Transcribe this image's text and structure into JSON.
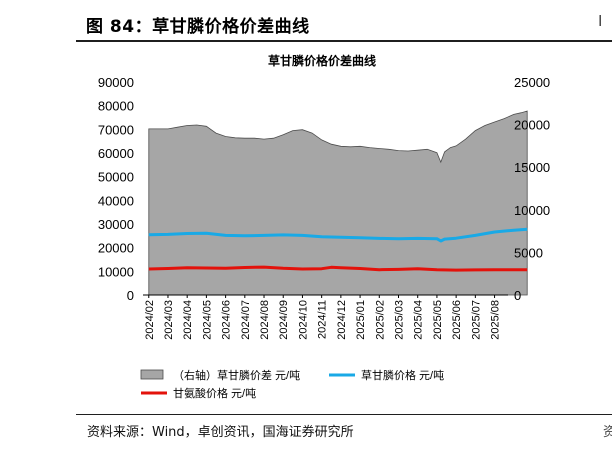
{
  "figure": {
    "label": "图 84：草甘膦价格价差曲线",
    "corner_glyph": "I",
    "source": "资料来源：Wind，卓创资讯，国海证券研究所",
    "source_corner": "资"
  },
  "chart_data": {
    "type": "area+line",
    "title": "草甘膦价格价差曲线",
    "x_labels": [
      "2024/02",
      "2024/03",
      "2024/04",
      "2024/05",
      "2024/06",
      "2024/07",
      "2024/08",
      "2024/09",
      "2024/10",
      "2024/11",
      "2024/12",
      "2025/01",
      "2025/02",
      "2025/03",
      "2025/04",
      "2025/05",
      "2025/06",
      "2025/07",
      "2025/08"
    ],
    "y_left": {
      "min": 0,
      "max": 90000,
      "ticks": [
        "0",
        "10000",
        "20000",
        "30000",
        "40000",
        "50000",
        "60000",
        "70000",
        "80000",
        "90000"
      ]
    },
    "y_right": {
      "min": 0,
      "max": 25000,
      "ticks": [
        "0",
        "5000",
        "10000",
        "15000",
        "20000",
        "25000"
      ]
    },
    "grid": false,
    "legend_position": "bottom",
    "series": [
      {
        "name": "（右轴）草甘膦价差 元/吨",
        "kind": "area",
        "axis": "right",
        "color": "#a6a6a6",
        "points": [
          [
            0,
            19500
          ],
          [
            1,
            19500
          ],
          [
            1.5,
            19700
          ],
          [
            2,
            19900
          ],
          [
            2.5,
            19950
          ],
          [
            3,
            19800
          ],
          [
            3.5,
            19000
          ],
          [
            4,
            18600
          ],
          [
            4.5,
            18450
          ],
          [
            5,
            18400
          ],
          [
            5.5,
            18400
          ],
          [
            6,
            18300
          ],
          [
            6.5,
            18400
          ],
          [
            7,
            18800
          ],
          [
            7.5,
            19300
          ],
          [
            8,
            19400
          ],
          [
            8.5,
            19000
          ],
          [
            9,
            18200
          ],
          [
            9.5,
            17700
          ],
          [
            10,
            17450
          ],
          [
            10.5,
            17400
          ],
          [
            11,
            17450
          ],
          [
            11.5,
            17300
          ],
          [
            12,
            17200
          ],
          [
            12.5,
            17100
          ],
          [
            13,
            16950
          ],
          [
            13.5,
            16900
          ],
          [
            14,
            17000
          ],
          [
            14.5,
            17100
          ],
          [
            15,
            16700
          ],
          [
            15.2,
            15600
          ],
          [
            15.4,
            16800
          ],
          [
            15.7,
            17300
          ],
          [
            16,
            17500
          ],
          [
            16.5,
            18300
          ],
          [
            17,
            19300
          ],
          [
            17.5,
            19900
          ],
          [
            18,
            20300
          ],
          [
            18.5,
            20700
          ],
          [
            19,
            21200
          ],
          [
            19.4,
            21400
          ],
          [
            19.7,
            21600
          ]
        ]
      },
      {
        "name": "草甘膦价格 元/吨",
        "kind": "line",
        "axis": "left",
        "color": "#19a9e6",
        "points": [
          [
            0,
            25500
          ],
          [
            1,
            25600
          ],
          [
            2,
            26000
          ],
          [
            3,
            26100
          ],
          [
            4,
            25200
          ],
          [
            5,
            25000
          ],
          [
            6,
            25200
          ],
          [
            7,
            25400
          ],
          [
            8,
            25200
          ],
          [
            9,
            24600
          ],
          [
            10,
            24400
          ],
          [
            11,
            24200
          ],
          [
            12,
            23900
          ],
          [
            13,
            23800
          ],
          [
            14,
            23900
          ],
          [
            15,
            23800
          ],
          [
            15.2,
            22800
          ],
          [
            15.4,
            23600
          ],
          [
            16,
            24000
          ],
          [
            17,
            25200
          ],
          [
            18,
            26600
          ],
          [
            19,
            27400
          ],
          [
            19.7,
            27800
          ]
        ]
      },
      {
        "name": "甘氨酸价格 元/吨",
        "kind": "line",
        "axis": "left",
        "color": "#e3120b",
        "points": [
          [
            0,
            11000
          ],
          [
            1,
            11200
          ],
          [
            2,
            11500
          ],
          [
            3,
            11400
          ],
          [
            4,
            11300
          ],
          [
            5,
            11600
          ],
          [
            6,
            11800
          ],
          [
            7,
            11300
          ],
          [
            8,
            11000
          ],
          [
            9,
            11100
          ],
          [
            9.5,
            11700
          ],
          [
            10,
            11500
          ],
          [
            11,
            11200
          ],
          [
            12,
            10700
          ],
          [
            13,
            10800
          ],
          [
            14,
            11100
          ],
          [
            15,
            10700
          ],
          [
            16,
            10500
          ],
          [
            17,
            10600
          ],
          [
            18,
            10700
          ],
          [
            19,
            10700
          ],
          [
            19.7,
            10700
          ]
        ]
      }
    ]
  }
}
